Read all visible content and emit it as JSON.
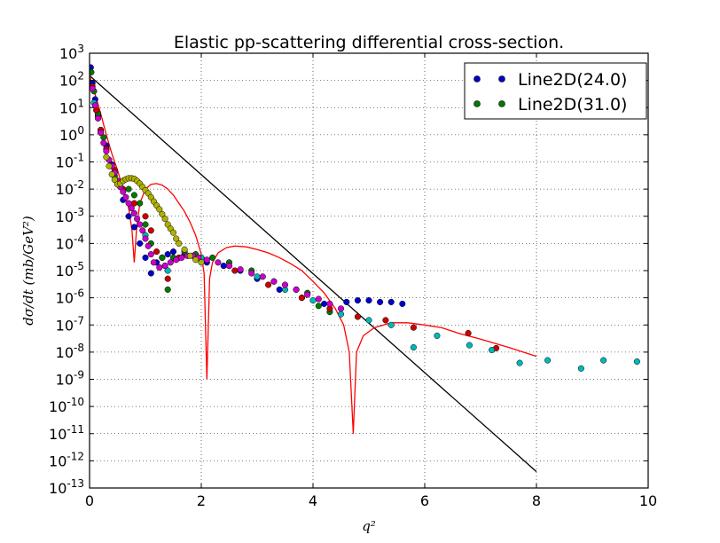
{
  "chart_data": {
    "type": "scatter",
    "title": "Elastic pp-scattering differential cross-section.",
    "xlabel": "q²",
    "ylabel": "dσ/dt (mb/GeV²)",
    "xlim": [
      0,
      10
    ],
    "ylim_log10": [
      -13,
      3
    ],
    "yscale": "log",
    "grid": true,
    "legend_placement": "top-right",
    "x_ticks": [
      "0",
      "2",
      "4",
      "6",
      "8",
      "10"
    ],
    "y_ticks": [
      {
        "base": "10",
        "exp": "3"
      },
      {
        "base": "10",
        "exp": "2"
      },
      {
        "base": "10",
        "exp": "1"
      },
      {
        "base": "10",
        "exp": "0"
      },
      {
        "base": "10",
        "exp": "-1"
      },
      {
        "base": "10",
        "exp": "-2"
      },
      {
        "base": "10",
        "exp": "-3"
      },
      {
        "base": "10",
        "exp": "-4"
      },
      {
        "base": "10",
        "exp": "-5"
      },
      {
        "base": "10",
        "exp": "-6"
      },
      {
        "base": "10",
        "exp": "-7"
      },
      {
        "base": "10",
        "exp": "-8"
      },
      {
        "base": "10",
        "exp": "-9"
      },
      {
        "base": "10",
        "exp": "-10"
      },
      {
        "base": "10",
        "exp": "-11"
      },
      {
        "base": "10",
        "exp": "-12"
      },
      {
        "base": "10",
        "exp": "-13"
      }
    ],
    "legend": [
      {
        "label": "Line2D(24.0)",
        "color": "#0000cc"
      },
      {
        "label": "Line2D(31.0)",
        "color": "#007a00"
      }
    ],
    "scatter_series": [
      {
        "color": "#0000cc",
        "points": [
          [
            0.02,
            300
          ],
          [
            0.05,
            80
          ],
          [
            0.1,
            20
          ],
          [
            0.15,
            5
          ],
          [
            0.2,
            1.5
          ],
          [
            0.3,
            0.4
          ],
          [
            0.4,
            0.08
          ],
          [
            0.5,
            0.015
          ],
          [
            0.6,
            0.004
          ],
          [
            0.7,
            0.001
          ],
          [
            0.8,
            0.0004
          ],
          [
            0.9,
            0.0001
          ],
          [
            1.0,
            3e-05
          ],
          [
            1.1,
            8e-06
          ],
          [
            1.2,
            2e-05
          ],
          [
            1.3,
            3e-05
          ],
          [
            1.4,
            4e-05
          ],
          [
            1.5,
            5e-05
          ],
          [
            1.7,
            4e-05
          ],
          [
            1.9,
            3e-05
          ],
          [
            2.1,
            2e-05
          ],
          [
            2.4,
            1.5e-05
          ],
          [
            2.7,
            1e-05
          ],
          [
            3.0,
            5e-06
          ],
          [
            3.4,
            2e-06
          ],
          [
            3.8,
            1e-06
          ],
          [
            4.2,
            6e-07
          ],
          [
            4.6,
            7e-07
          ],
          [
            4.8,
            8e-07
          ],
          [
            5.0,
            8e-07
          ],
          [
            5.2,
            7e-07
          ],
          [
            5.4,
            7e-07
          ],
          [
            5.6,
            6e-07
          ]
        ]
      },
      {
        "color": "#007a00",
        "points": [
          [
            0.03,
            200
          ],
          [
            0.08,
            40
          ],
          [
            0.15,
            6
          ],
          [
            0.25,
            0.8
          ],
          [
            0.35,
            0.12
          ],
          [
            0.45,
            0.03
          ],
          [
            0.6,
            0.02
          ],
          [
            0.7,
            0.01
          ],
          [
            0.8,
            0.006
          ],
          [
            0.9,
            0.003
          ],
          [
            1.0,
            0.0005
          ],
          [
            1.1,
            0.0001
          ],
          [
            1.3,
            3e-05
          ],
          [
            1.4,
            2e-06
          ],
          [
            1.5,
            3e-05
          ],
          [
            1.7,
            5e-05
          ],
          [
            1.9,
            4e-05
          ],
          [
            2.2,
            3e-05
          ],
          [
            2.5,
            2e-05
          ],
          [
            2.9,
            1e-05
          ],
          [
            3.3,
            4e-06
          ],
          [
            3.7,
            2e-06
          ],
          [
            3.9,
            1.5e-06
          ],
          [
            4.1,
            5e-07
          ],
          [
            4.3,
            3e-07
          ]
        ]
      },
      {
        "color": "#cc0000",
        "points": [
          [
            0.05,
            60
          ],
          [
            0.12,
            8
          ],
          [
            0.2,
            1.5
          ],
          [
            0.3,
            0.3
          ],
          [
            0.45,
            0.05
          ],
          [
            0.6,
            0.01
          ],
          [
            0.8,
            0.003
          ],
          [
            1.0,
            0.001
          ],
          [
            1.1,
            0.0003
          ],
          [
            1.2,
            5e-05
          ],
          [
            1.35,
            1.5e-05
          ],
          [
            1.4,
            5e-06
          ],
          [
            1.6,
            3e-05
          ],
          [
            2.0,
            3e-05
          ],
          [
            2.6,
            1e-05
          ],
          [
            3.2,
            3e-06
          ],
          [
            3.8,
            1e-06
          ],
          [
            4.3,
            4e-07
          ],
          [
            4.8,
            2e-07
          ],
          [
            5.3,
            1.5e-07
          ],
          [
            5.8,
            8e-08
          ],
          [
            6.78,
            5e-08
          ],
          [
            7.28,
            1.4e-08
          ]
        ]
      },
      {
        "color": "#00b8b8",
        "points": [
          [
            0.08,
            15
          ],
          [
            0.2,
            1.2
          ],
          [
            0.5,
            0.02
          ],
          [
            1.0,
            0.0002
          ],
          [
            1.4,
            1e-05
          ],
          [
            2.0,
            3e-05
          ],
          [
            2.5,
            1.5e-05
          ],
          [
            3.0,
            6e-06
          ],
          [
            3.5,
            2e-06
          ],
          [
            4.0,
            8e-07
          ],
          [
            4.5,
            2.5e-07
          ],
          [
            5.0,
            1.5e-07
          ],
          [
            5.4,
            1e-07
          ],
          [
            5.8,
            1.5e-08
          ],
          [
            6.22,
            4e-08
          ],
          [
            6.8,
            1.8e-08
          ],
          [
            7.2,
            1.2e-08
          ],
          [
            7.7,
            4e-09
          ],
          [
            8.2,
            5e-09
          ],
          [
            8.8,
            2.5e-09
          ],
          [
            9.2,
            5e-09
          ],
          [
            9.8,
            4.5e-09
          ]
        ]
      },
      {
        "color": "#cc00cc",
        "points": [
          [
            0.05,
            50
          ],
          [
            0.1,
            12
          ],
          [
            0.15,
            4
          ],
          [
            0.2,
            1.2
          ],
          [
            0.25,
            0.5
          ],
          [
            0.3,
            0.25
          ],
          [
            0.35,
            0.12
          ],
          [
            0.4,
            0.07
          ],
          [
            0.45,
            0.04
          ],
          [
            0.5,
            0.02
          ],
          [
            0.55,
            0.012
          ],
          [
            0.6,
            0.008
          ],
          [
            0.65,
            0.005
          ],
          [
            0.7,
            0.003
          ],
          [
            0.75,
            0.002
          ],
          [
            0.8,
            0.0013
          ],
          [
            0.85,
            0.0008
          ],
          [
            0.9,
            0.0005
          ],
          [
            0.95,
            0.0003
          ],
          [
            1.0,
            0.00015
          ],
          [
            1.05,
            8e-05
          ],
          [
            1.1,
            4e-05
          ],
          [
            1.15,
            2e-05
          ],
          [
            1.25,
            1.3e-05
          ],
          [
            1.35,
            1.5e-05
          ],
          [
            1.45,
            2e-05
          ],
          [
            1.55,
            2.5e-05
          ],
          [
            1.65,
            3e-05
          ],
          [
            1.75,
            3.5e-05
          ],
          [
            1.85,
            3.5e-05
          ],
          [
            1.95,
            3e-05
          ],
          [
            2.1,
            2.5e-05
          ],
          [
            2.3,
            2e-05
          ],
          [
            2.5,
            1.5e-05
          ],
          [
            2.7,
            1.1e-05
          ],
          [
            2.9,
            8e-06
          ],
          [
            3.1,
            6e-06
          ],
          [
            3.3,
            4e-06
          ],
          [
            3.5,
            3e-06
          ],
          [
            3.7,
            2e-06
          ],
          [
            3.9,
            1.3e-06
          ],
          [
            4.1,
            9e-07
          ],
          [
            4.3,
            6e-07
          ],
          [
            4.5,
            4e-07
          ]
        ]
      },
      {
        "color": "#b0b000",
        "points": [
          [
            0.3,
            0.15
          ],
          [
            0.35,
            0.07
          ],
          [
            0.4,
            0.035
          ],
          [
            0.45,
            0.022
          ],
          [
            0.5,
            0.015
          ],
          [
            0.55,
            0.016
          ],
          [
            0.6,
            0.02
          ],
          [
            0.65,
            0.023
          ],
          [
            0.7,
            0.025
          ],
          [
            0.75,
            0.025
          ],
          [
            0.8,
            0.024
          ],
          [
            0.85,
            0.02
          ],
          [
            0.9,
            0.016
          ],
          [
            0.95,
            0.012
          ],
          [
            1.0,
            0.009
          ],
          [
            1.05,
            0.007
          ],
          [
            1.1,
            0.005
          ],
          [
            1.15,
            0.0035
          ],
          [
            1.2,
            0.0025
          ],
          [
            1.25,
            0.0018
          ],
          [
            1.3,
            0.0012
          ],
          [
            1.35,
            0.0008
          ],
          [
            1.4,
            0.0005
          ],
          [
            1.45,
            0.00035
          ],
          [
            1.5,
            0.00025
          ],
          [
            1.55,
            0.00015
          ],
          [
            1.6,
            0.0001
          ],
          [
            1.7,
            6e-05
          ],
          [
            1.8,
            3.5e-05
          ],
          [
            1.9,
            2.5e-05
          ],
          [
            2.0,
            2e-05
          ]
        ]
      }
    ],
    "red_curve": {
      "color": "#ff0000",
      "points": [
        [
          0.0,
          150
        ],
        [
          0.1,
          30
        ],
        [
          0.2,
          6
        ],
        [
          0.3,
          1
        ],
        [
          0.4,
          0.2
        ],
        [
          0.5,
          0.05
        ],
        [
          0.6,
          0.01
        ],
        [
          0.7,
          0.002
        ],
        [
          0.76,
          0.0003
        ],
        [
          0.8,
          2e-05
        ],
        [
          0.84,
          0.0003
        ],
        [
          0.9,
          0.003
        ],
        [
          1.0,
          0.01
        ],
        [
          1.1,
          0.015
        ],
        [
          1.2,
          0.016
        ],
        [
          1.3,
          0.014
        ],
        [
          1.4,
          0.01
        ],
        [
          1.5,
          0.006
        ],
        [
          1.6,
          0.003
        ],
        [
          1.7,
          0.0015
        ],
        [
          1.8,
          0.0006
        ],
        [
          1.9,
          0.0002
        ],
        [
          2.0,
          4e-05
        ],
        [
          2.05,
          8e-06
        ],
        [
          2.1,
          1e-09
        ],
        [
          2.15,
          5e-06
        ],
        [
          2.2,
          2e-05
        ],
        [
          2.3,
          4.5e-05
        ],
        [
          2.45,
          7e-05
        ],
        [
          2.6,
          8e-05
        ],
        [
          2.8,
          7.5e-05
        ],
        [
          3.0,
          6e-05
        ],
        [
          3.2,
          4.5e-05
        ],
        [
          3.4,
          3e-05
        ],
        [
          3.6,
          1.8e-05
        ],
        [
          3.8,
          1e-05
        ],
        [
          4.0,
          4e-06
        ],
        [
          4.2,
          1.5e-06
        ],
        [
          4.4,
          4e-07
        ],
        [
          4.55,
          1e-07
        ],
        [
          4.65,
          1e-08
        ],
        [
          4.72,
          1e-11
        ],
        [
          4.78,
          1e-08
        ],
        [
          4.9,
          4e-08
        ],
        [
          5.1,
          8e-08
        ],
        [
          5.4,
          1.2e-07
        ],
        [
          5.7,
          1.2e-07
        ],
        [
          6.0,
          1e-07
        ],
        [
          6.3,
          8e-08
        ],
        [
          6.6,
          5e-08
        ],
        [
          7.0,
          3e-08
        ],
        [
          7.5,
          1.5e-08
        ],
        [
          8.0,
          7e-09
        ]
      ]
    },
    "black_line": {
      "color": "#000000",
      "points": [
        [
          0.0,
          150
        ],
        [
          8.0,
          4e-13
        ]
      ]
    }
  }
}
